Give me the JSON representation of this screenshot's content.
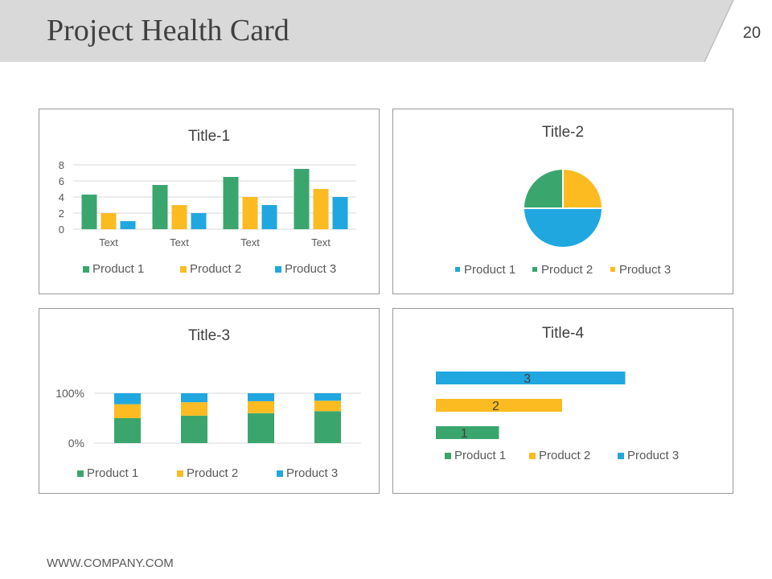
{
  "header": {
    "title": "Project Health Card",
    "page_number": "20"
  },
  "footer": {
    "url": "WWW.COMPANY.COM"
  },
  "colors": {
    "green": "#3aa66e",
    "yellow": "#fbbb21",
    "blue": "#21a7e0",
    "header_bg": "#d9d9d9"
  },
  "chart_data": [
    {
      "type": "bar",
      "title": "Title-1",
      "categories": [
        "Text",
        "Text",
        "Text",
        "Text"
      ],
      "series": [
        {
          "name": "Product  1",
          "values": [
            4.3,
            5.5,
            6.5,
            7.5
          ]
        },
        {
          "name": "Product 2",
          "values": [
            2,
            3,
            4,
            5
          ]
        },
        {
          "name": "Product 3",
          "values": [
            1,
            2,
            3,
            4
          ]
        }
      ],
      "ylim": [
        0,
        8
      ],
      "yticks": [
        "0",
        "2",
        "4",
        "6",
        "8"
      ],
      "legend": "bottom"
    },
    {
      "type": "pie",
      "title": "Title-2",
      "labels": [
        "Product 1",
        "Product 2",
        "Product 3"
      ],
      "values": [
        50,
        25,
        25
      ],
      "legend": "bottom"
    },
    {
      "type": "bar",
      "stacked": "percent",
      "title": "Title-3",
      "categories": [
        "",
        "",
        "",
        ""
      ],
      "series": [
        {
          "name": "Product  1",
          "values": [
            50,
            55,
            60,
            64
          ]
        },
        {
          "name": "Product  2",
          "values": [
            28,
            27,
            24,
            21
          ]
        },
        {
          "name": "Product  3",
          "values": [
            22,
            18,
            16,
            15
          ]
        }
      ],
      "yticks": [
        "0%",
        "100%"
      ],
      "legend": "bottom"
    },
    {
      "type": "bar",
      "orientation": "horizontal",
      "title": "Title-4",
      "categories": [
        "Product 1",
        "Product  2",
        "Product  3"
      ],
      "values": [
        1,
        2,
        3
      ],
      "data_labels": [
        "1",
        "2",
        "3"
      ],
      "legend_labels": [
        "Product 1",
        "Product  2",
        "Product  3"
      ],
      "legend": "bottom"
    }
  ]
}
